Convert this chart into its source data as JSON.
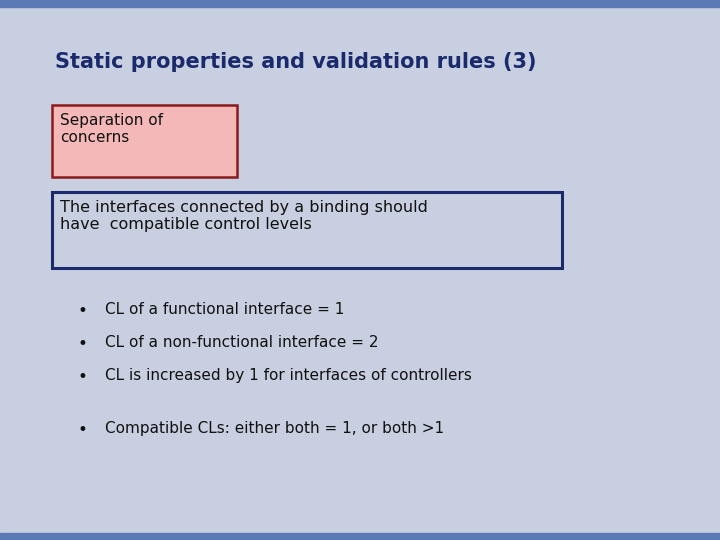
{
  "title": "Static properties and validation rules (3)",
  "title_color": "#1a2a6c",
  "title_fontsize": 15,
  "bg_color": "#c8cfe0",
  "top_bar_color": "#5a7ab5",
  "bottom_bar_color": "#5a7ab5",
  "sep_box_text": "Separation of\nconcerns",
  "sep_box_facecolor": "#f5b8b8",
  "sep_box_edgecolor": "#8b1a1a",
  "sep_box_textcolor": "#111111",
  "rule_box_text": "The interfaces connected by a binding should\nhave  compatible control levels",
  "rule_box_facecolor": "#c8cfe0",
  "rule_box_edgecolor": "#1a2a6c",
  "rule_box_textcolor": "#111111",
  "bullets": [
    "CL of a functional interface = 1",
    "CL of a non-functional interface = 2",
    "CL is increased by 1 for interfaces of controllers"
  ],
  "bullet_extra": "Compatible CLs: either both = 1, or both >1",
  "bullet_color": "#111111",
  "bullet_fontsize": 11
}
